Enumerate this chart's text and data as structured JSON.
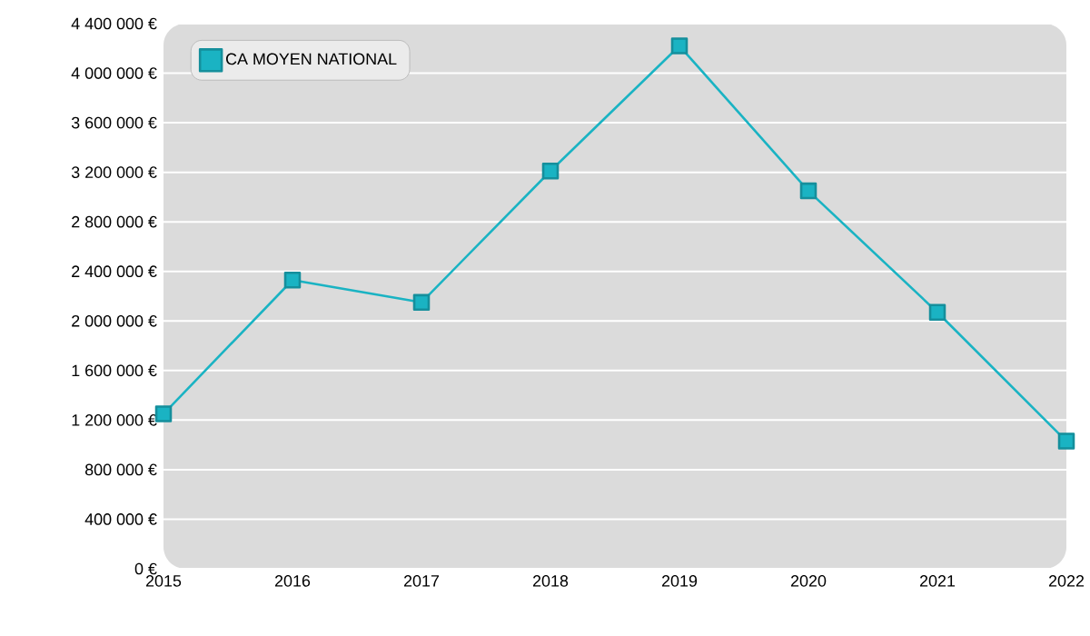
{
  "chart_data": {
    "type": "line",
    "x": [
      2015,
      2016,
      2017,
      2018,
      2019,
      2020,
      2021,
      2022
    ],
    "series": [
      {
        "name": "CA MOYEN NATIONAL",
        "color": "#1ab3c3",
        "values": [
          1250000,
          2330000,
          2150000,
          3210000,
          4220000,
          3050000,
          2070000,
          1030000
        ]
      }
    ],
    "xlim": [
      2015,
      2022
    ],
    "xticks": [
      2015,
      2016,
      2017,
      2018,
      2019,
      2020,
      2021,
      2022
    ],
    "ylim": [
      0,
      4400000
    ],
    "yticks": [
      {
        "value": 0,
        "label": "0 €"
      },
      {
        "value": 400000,
        "label": "400 000 €"
      },
      {
        "value": 800000,
        "label": "800 000 €"
      },
      {
        "value": 1200000,
        "label": "1 200 000 €"
      },
      {
        "value": 1600000,
        "label": "1 600 000 €"
      },
      {
        "value": 2000000,
        "label": "2 000 000 €"
      },
      {
        "value": 2400000,
        "label": "2 400 000 €"
      },
      {
        "value": 2800000,
        "label": "2 800 000 €"
      },
      {
        "value": 3200000,
        "label": "3 200 000 €"
      },
      {
        "value": 3600000,
        "label": "3 600 000 €"
      },
      {
        "value": 4000000,
        "label": "4 000 000 €"
      },
      {
        "value": 4400000,
        "label": "4 400 000 €"
      }
    ],
    "grid": "y",
    "legend": "top left",
    "marker": "square",
    "line_style": "solid"
  }
}
